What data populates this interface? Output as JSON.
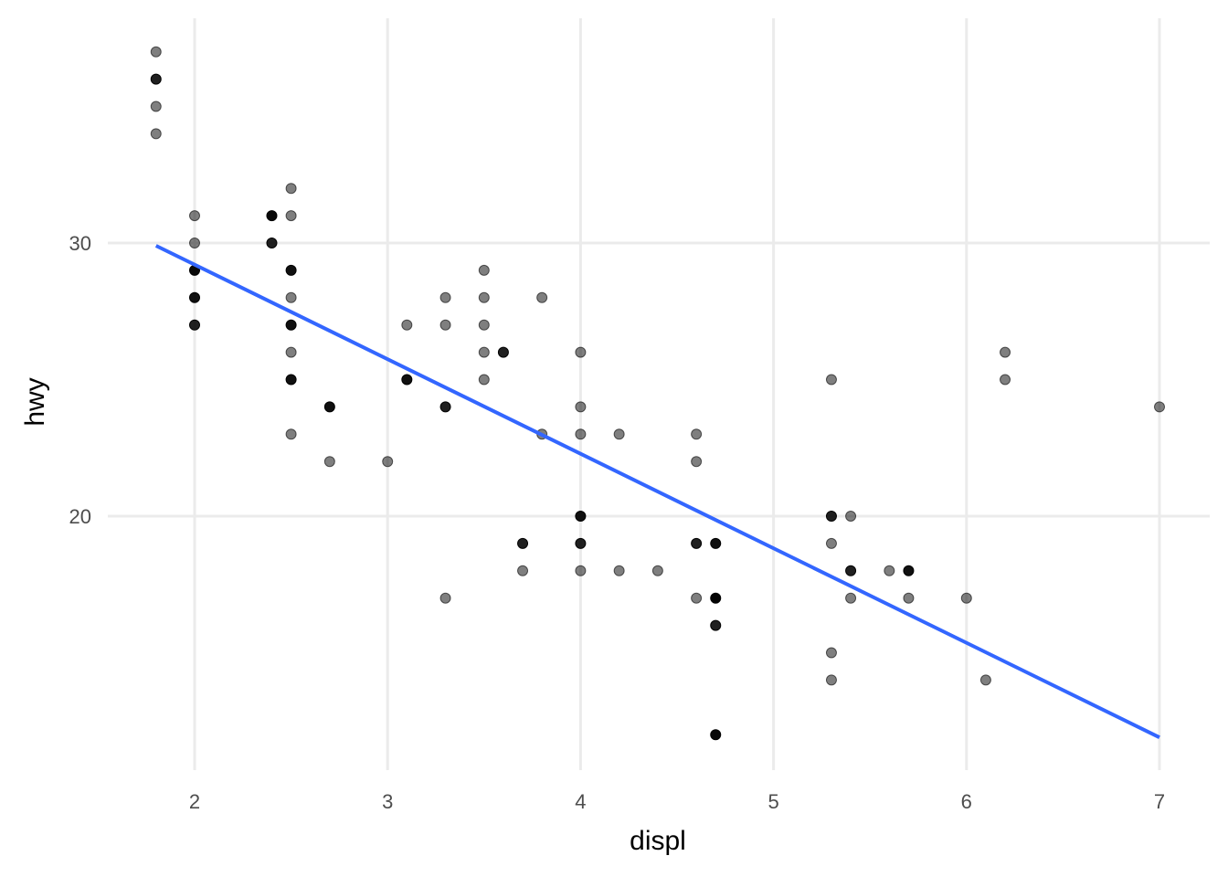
{
  "chart_data": {
    "type": "scatter",
    "title": "",
    "xlabel": "displ",
    "ylabel": "hwy",
    "xlim": [
      1.61,
      7.26
    ],
    "ylim": [
      11.1,
      38.6
    ],
    "x_ticks": [
      2,
      3,
      4,
      5,
      6,
      7
    ],
    "y_ticks": [
      20,
      30
    ],
    "grid": true,
    "legend": null,
    "point_color": "#000000",
    "point_alpha": 0.5,
    "smooth_line": {
      "method": "lm",
      "color": "#3366FF",
      "x": [
        1.8,
        7.0
      ],
      "y": [
        29.9,
        11.9
      ]
    },
    "points": [
      {
        "x": 1.8,
        "y": 37,
        "n": 1
      },
      {
        "x": 1.8,
        "y": 36,
        "n": 3
      },
      {
        "x": 1.8,
        "y": 35,
        "n": 1
      },
      {
        "x": 1.8,
        "y": 34,
        "n": 1
      },
      {
        "x": 2.0,
        "y": 31,
        "n": 1
      },
      {
        "x": 2.0,
        "y": 30,
        "n": 1
      },
      {
        "x": 2.0,
        "y": 29,
        "n": 5
      },
      {
        "x": 2.0,
        "y": 28,
        "n": 4
      },
      {
        "x": 2.0,
        "y": 27,
        "n": 3
      },
      {
        "x": 2.4,
        "y": 31,
        "n": 5
      },
      {
        "x": 2.4,
        "y": 30,
        "n": 3
      },
      {
        "x": 2.5,
        "y": 32,
        "n": 1
      },
      {
        "x": 2.5,
        "y": 31,
        "n": 1
      },
      {
        "x": 2.5,
        "y": 29,
        "n": 4
      },
      {
        "x": 2.5,
        "y": 28,
        "n": 1
      },
      {
        "x": 2.5,
        "y": 27,
        "n": 4
      },
      {
        "x": 2.5,
        "y": 26,
        "n": 1
      },
      {
        "x": 2.5,
        "y": 25,
        "n": 4
      },
      {
        "x": 2.5,
        "y": 23,
        "n": 1
      },
      {
        "x": 2.7,
        "y": 24,
        "n": 4
      },
      {
        "x": 2.7,
        "y": 22,
        "n": 1
      },
      {
        "x": 3.0,
        "y": 22,
        "n": 1
      },
      {
        "x": 3.1,
        "y": 27,
        "n": 1
      },
      {
        "x": 3.1,
        "y": 25,
        "n": 4
      },
      {
        "x": 3.3,
        "y": 28,
        "n": 1
      },
      {
        "x": 3.3,
        "y": 27,
        "n": 1
      },
      {
        "x": 3.3,
        "y": 24,
        "n": 3
      },
      {
        "x": 3.3,
        "y": 17,
        "n": 1
      },
      {
        "x": 3.5,
        "y": 29,
        "n": 1
      },
      {
        "x": 3.5,
        "y": 28,
        "n": 1
      },
      {
        "x": 3.5,
        "y": 27,
        "n": 1
      },
      {
        "x": 3.5,
        "y": 26,
        "n": 1
      },
      {
        "x": 3.5,
        "y": 25,
        "n": 1
      },
      {
        "x": 3.6,
        "y": 26,
        "n": 3
      },
      {
        "x": 3.7,
        "y": 19,
        "n": 3
      },
      {
        "x": 3.7,
        "y": 18,
        "n": 1
      },
      {
        "x": 3.8,
        "y": 28,
        "n": 1
      },
      {
        "x": 3.8,
        "y": 23,
        "n": 1
      },
      {
        "x": 4.0,
        "y": 26,
        "n": 1
      },
      {
        "x": 4.0,
        "y": 24,
        "n": 1
      },
      {
        "x": 4.0,
        "y": 23,
        "n": 1
      },
      {
        "x": 4.0,
        "y": 20,
        "n": 4
      },
      {
        "x": 4.0,
        "y": 19,
        "n": 3
      },
      {
        "x": 4.0,
        "y": 18,
        "n": 1
      },
      {
        "x": 4.2,
        "y": 23,
        "n": 1
      },
      {
        "x": 4.2,
        "y": 18,
        "n": 1
      },
      {
        "x": 4.4,
        "y": 18,
        "n": 1
      },
      {
        "x": 4.6,
        "y": 23,
        "n": 1
      },
      {
        "x": 4.6,
        "y": 22,
        "n": 1
      },
      {
        "x": 4.6,
        "y": 19,
        "n": 3
      },
      {
        "x": 4.6,
        "y": 17,
        "n": 1
      },
      {
        "x": 4.7,
        "y": 19,
        "n": 4
      },
      {
        "x": 4.7,
        "y": 17,
        "n": 6
      },
      {
        "x": 4.7,
        "y": 16,
        "n": 3
      },
      {
        "x": 4.7,
        "y": 12,
        "n": 5
      },
      {
        "x": 5.3,
        "y": 25,
        "n": 1
      },
      {
        "x": 5.3,
        "y": 20,
        "n": 3
      },
      {
        "x": 5.3,
        "y": 19,
        "n": 1
      },
      {
        "x": 5.3,
        "y": 15,
        "n": 1
      },
      {
        "x": 5.3,
        "y": 14,
        "n": 1
      },
      {
        "x": 5.4,
        "y": 20,
        "n": 1
      },
      {
        "x": 5.4,
        "y": 18,
        "n": 3
      },
      {
        "x": 5.4,
        "y": 17,
        "n": 1
      },
      {
        "x": 5.6,
        "y": 18,
        "n": 1
      },
      {
        "x": 5.7,
        "y": 18,
        "n": 4
      },
      {
        "x": 5.7,
        "y": 17,
        "n": 1
      },
      {
        "x": 6.0,
        "y": 17,
        "n": 1
      },
      {
        "x": 6.1,
        "y": 14,
        "n": 1
      },
      {
        "x": 6.2,
        "y": 26,
        "n": 1
      },
      {
        "x": 6.2,
        "y": 25,
        "n": 1
      },
      {
        "x": 7.0,
        "y": 24,
        "n": 1
      }
    ]
  }
}
